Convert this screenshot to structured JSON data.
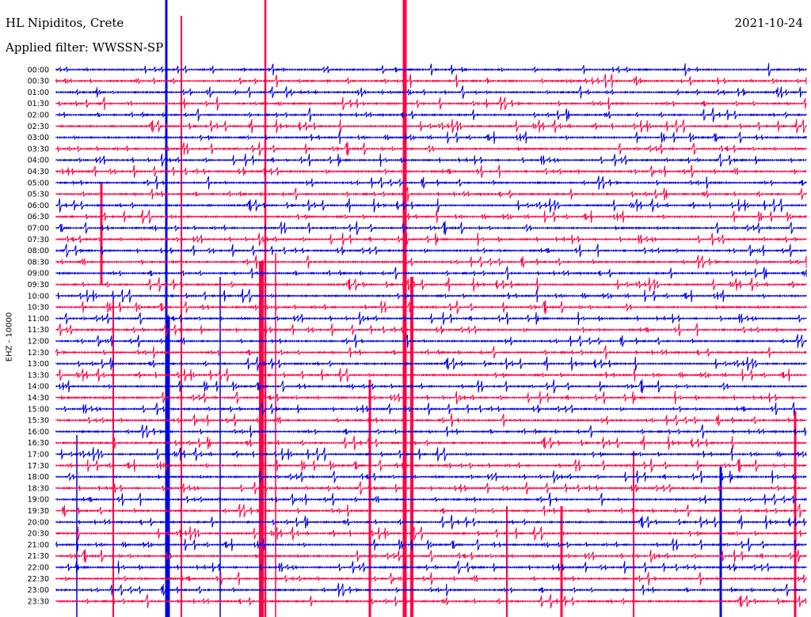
{
  "header": {
    "station": "HL Nipiditos, Crete",
    "filter": "Applied filter: WWSSN-SP",
    "date": "2021-10-24"
  },
  "chart_data": {
    "type": "line",
    "channel_label": "EHZ - 10000",
    "time_labels": [
      "00:00",
      "00:30",
      "01:00",
      "01:30",
      "02:00",
      "02:30",
      "03:00",
      "03:30",
      "04:00",
      "04:30",
      "05:00",
      "05:30",
      "06:00",
      "06:30",
      "07:00",
      "07:30",
      "08:00",
      "08:30",
      "09:00",
      "09:30",
      "10:00",
      "10:30",
      "11:00",
      "11:30",
      "12:00",
      "12:30",
      "13:00",
      "13:30",
      "14:00",
      "14:30",
      "15:00",
      "15:30",
      "16:00",
      "16:30",
      "17:00",
      "17:30",
      "18:00",
      "18:30",
      "19:00",
      "19:30",
      "20:00",
      "20:30",
      "21:00",
      "21:30",
      "22:00",
      "22:30",
      "23:00",
      "23:30"
    ],
    "series_colors": [
      "#0000e6",
      "#ff0044"
    ],
    "grid": false,
    "legend": "none"
  }
}
